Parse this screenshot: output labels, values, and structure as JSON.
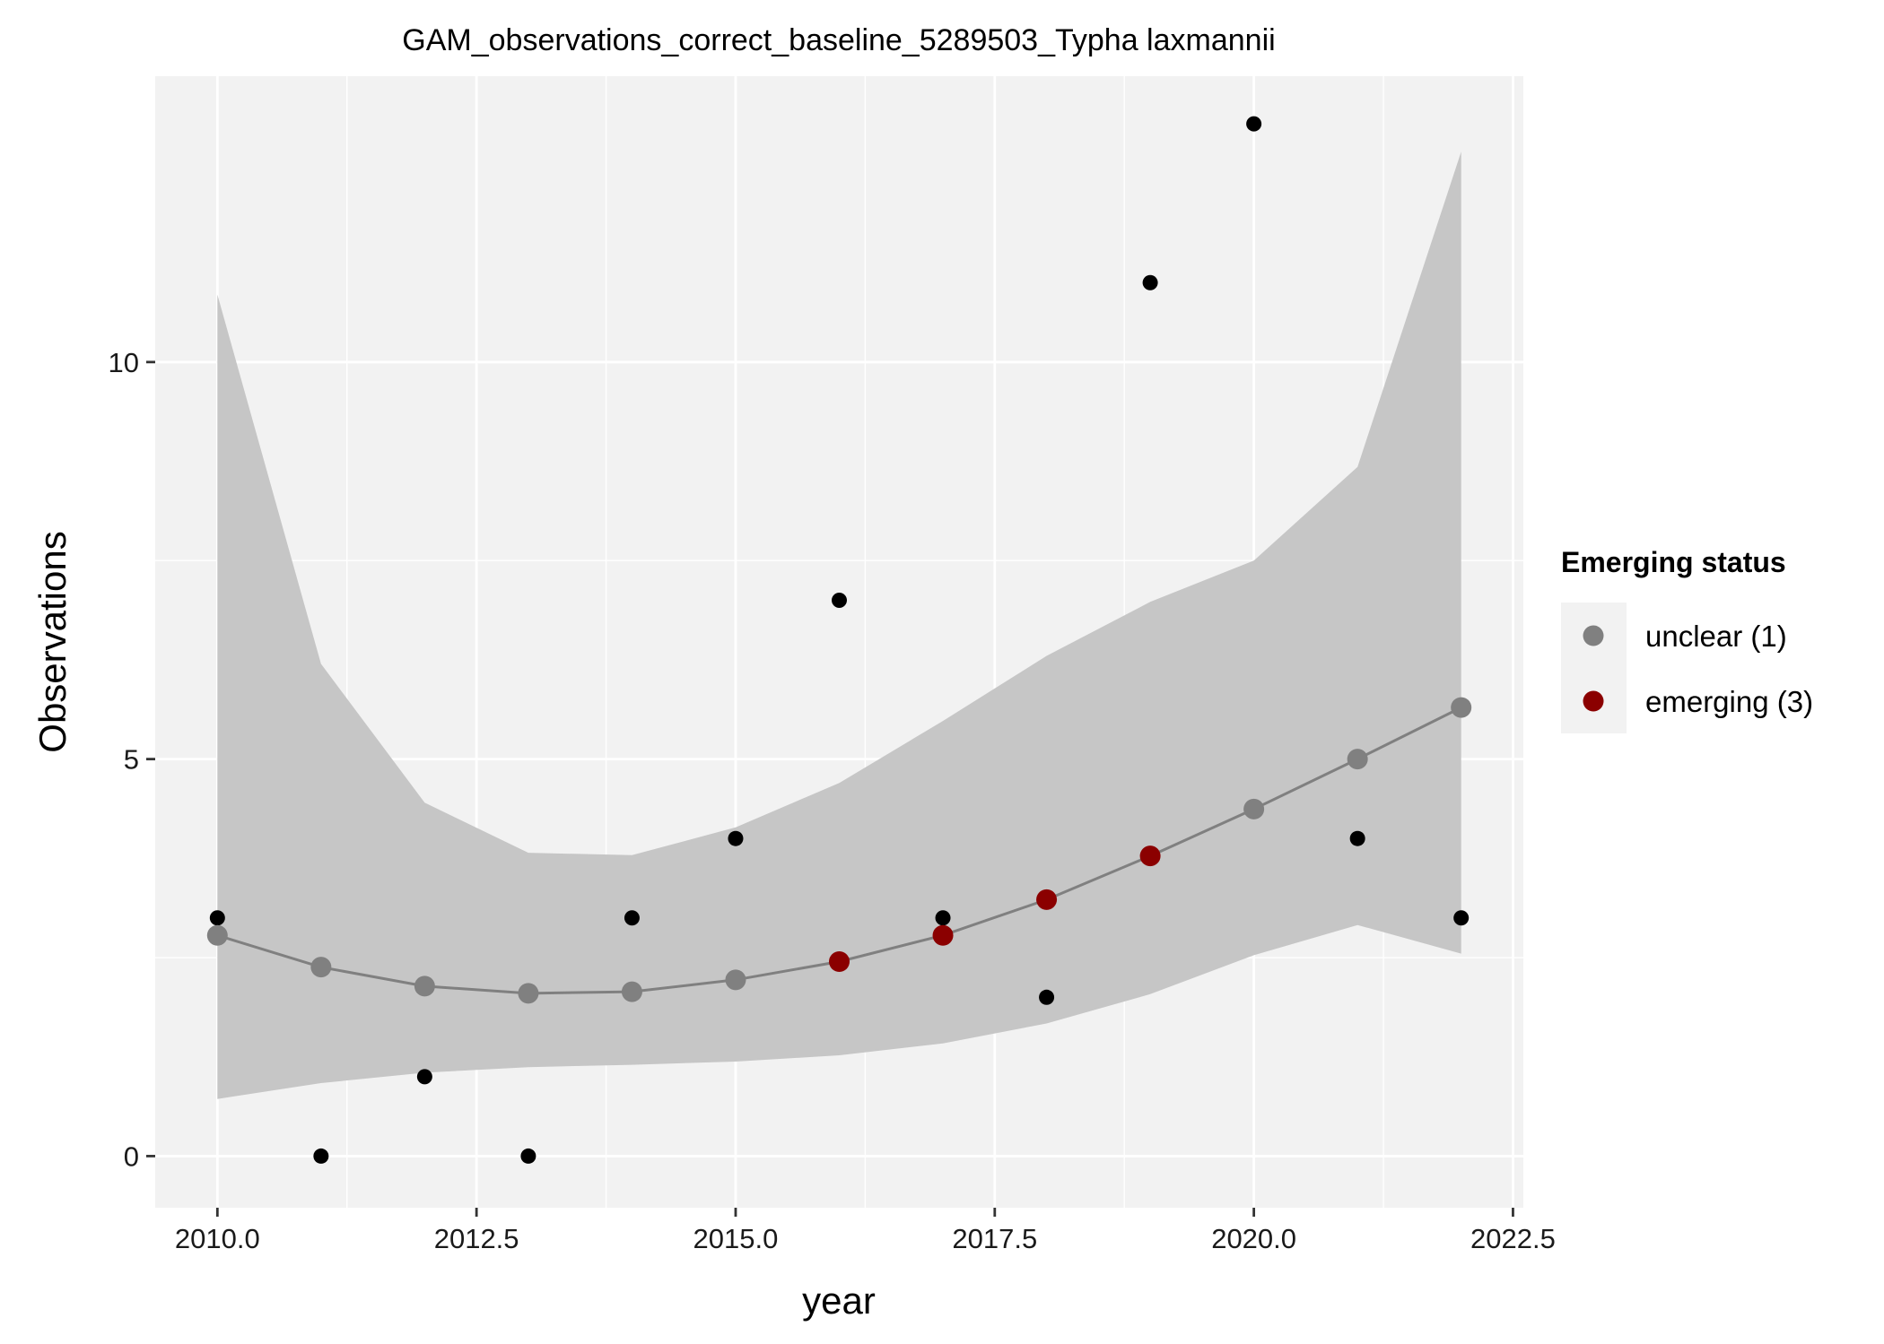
{
  "chart_data": {
    "type": "scatter",
    "title": "GAM_observations_correct_baseline_5289503_Typha laxmannii",
    "xlabel": "year",
    "ylabel": "Observations",
    "xlim": [
      2009.4,
      2022.6
    ],
    "ylim": [
      -0.65,
      13.6
    ],
    "x_ticks": [
      2010,
      2012.5,
      2015,
      2017.5,
      2020,
      2022.5
    ],
    "x_tick_labels": [
      "2010.0",
      "2012.5",
      "2015.0",
      "2017.5",
      "2020.0",
      "2022.5"
    ],
    "y_ticks": [
      0,
      5,
      10
    ],
    "y_tick_labels": [
      "0",
      "5",
      "10"
    ],
    "grid": true,
    "observations": {
      "x": [
        2010,
        2011,
        2012,
        2013,
        2014,
        2015,
        2016,
        2017,
        2018,
        2019,
        2020,
        2021,
        2022
      ],
      "y": [
        3,
        0,
        1,
        0,
        3,
        4,
        7,
        3,
        2,
        11,
        13,
        4,
        3
      ]
    },
    "gam_fit": {
      "x": [
        2010,
        2011,
        2012,
        2013,
        2014,
        2015,
        2016,
        2017,
        2018,
        2019,
        2020,
        2021,
        2022
      ],
      "y": [
        2.78,
        2.38,
        2.14,
        2.05,
        2.07,
        2.22,
        2.45,
        2.78,
        3.23,
        3.78,
        4.37,
        5.0,
        5.65
      ],
      "ci_lower": [
        0.72,
        0.92,
        1.05,
        1.12,
        1.15,
        1.19,
        1.27,
        1.42,
        1.67,
        2.04,
        2.53,
        2.91,
        2.55
      ],
      "ci_upper": [
        10.85,
        6.2,
        4.45,
        3.82,
        3.79,
        4.14,
        4.7,
        5.48,
        6.3,
        6.98,
        7.5,
        8.68,
        12.65
      ],
      "status": [
        "unclear",
        "unclear",
        "unclear",
        "unclear",
        "unclear",
        "unclear",
        "emerging",
        "emerging",
        "emerging",
        "emerging",
        "unclear",
        "unclear",
        "unclear"
      ]
    },
    "legend": {
      "title": "Emerging status",
      "placement": "right",
      "entries": [
        {
          "key": "unclear",
          "label": "unclear (1)",
          "color": "#808080"
        },
        {
          "key": "emerging",
          "label": "emerging (3)",
          "color": "#8b0000"
        }
      ]
    },
    "colors": {
      "panel_background": "#f2f2f2",
      "grid": "#ffffff",
      "ribbon": "#c6c6c6",
      "fit_line": "#808080",
      "observation_point": "#000000",
      "unclear": "#808080",
      "emerging": "#8b0000"
    }
  }
}
